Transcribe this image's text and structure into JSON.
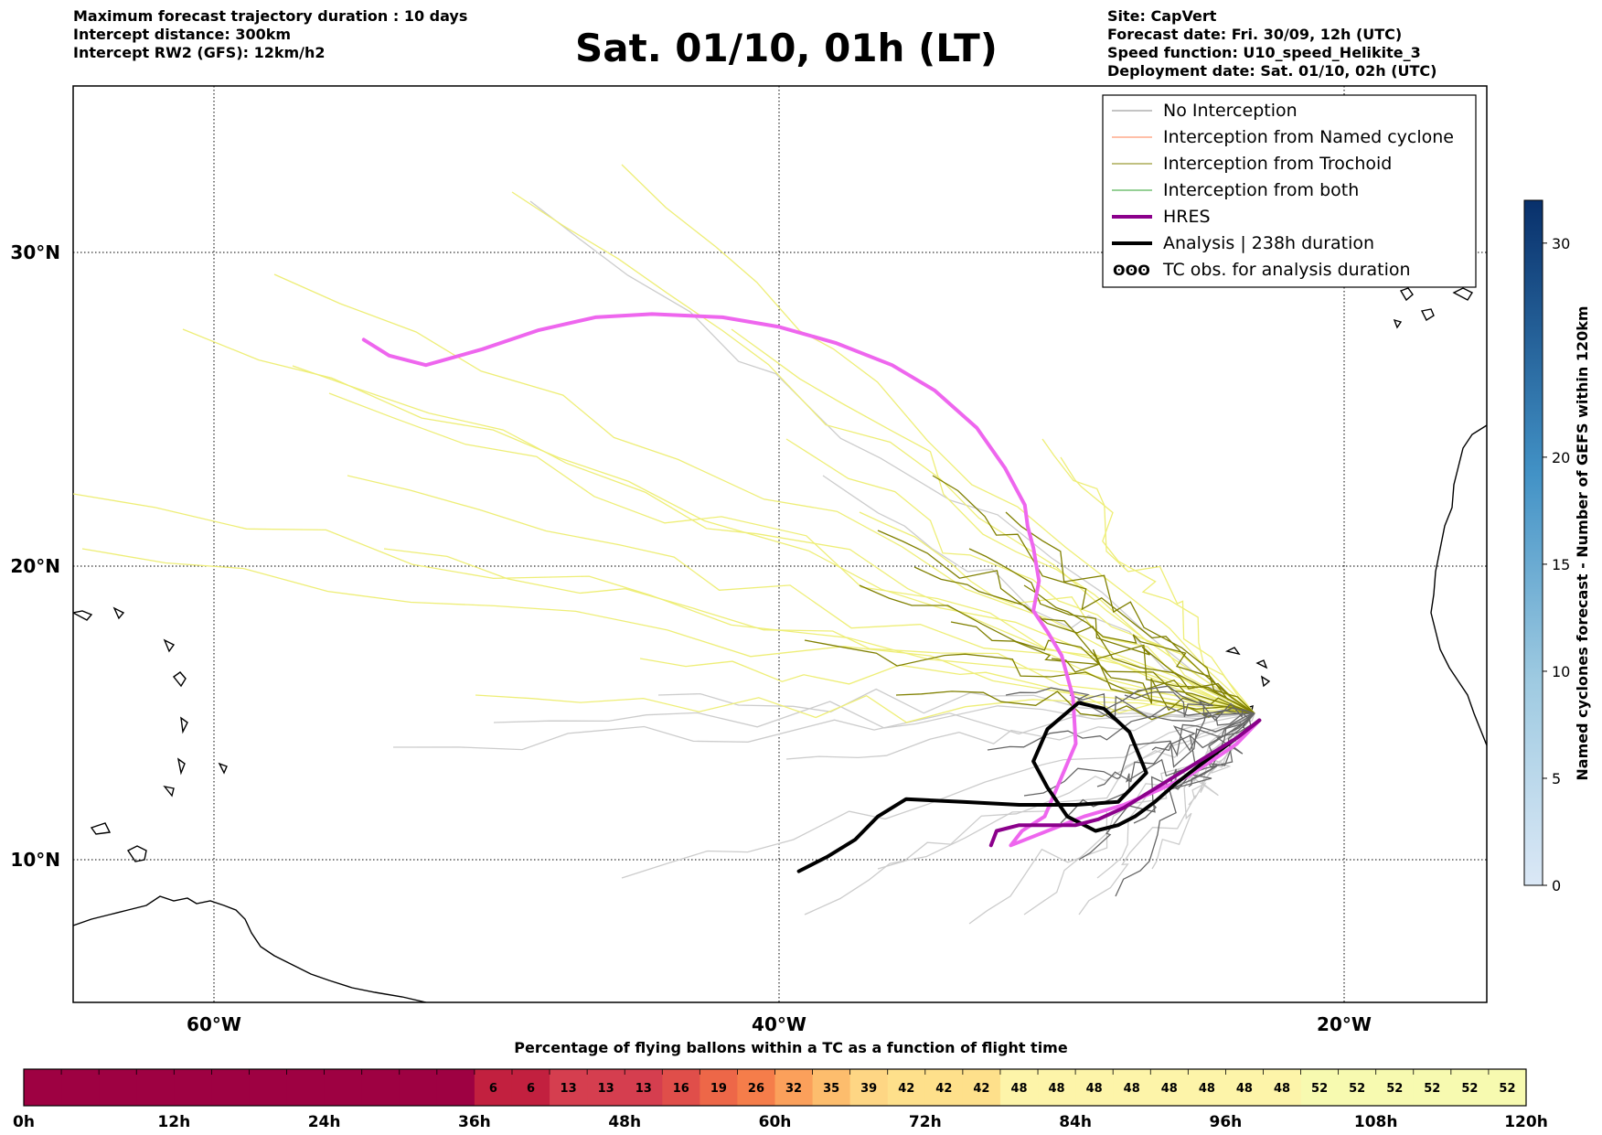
{
  "header": {
    "left_lines": [
      "Maximum forecast trajectory duration : 10 days",
      "Intercept distance: 300km",
      "Intercept RW2 (GFS):  12km/h2"
    ],
    "title": "Sat. 01/10, 01h (LT)",
    "right_lines": [
      "Site: CapVert",
      "Forecast date: Fri. 30/09, 12h (UTC)",
      "Speed function: U10_speed_Helikite_3",
      "Deployment date: Sat. 01/10, 02h (UTC)"
    ]
  },
  "colors": {
    "no_interception": "#aaaaaa",
    "named_cyclone": "#ff7f50",
    "trochoid": "#808000",
    "both": "#2ca02c",
    "hres": "#8b008b",
    "analysis": "#000000",
    "yellow_traj": "#eeee77",
    "magenta_hres": "#ee66ee"
  },
  "chart_data": [
    {
      "type": "line",
      "title": "",
      "x_ticks": [
        "60°W",
        "40°W",
        "20°W"
      ],
      "y_ticks": [
        "30°N",
        "20°N",
        "10°N"
      ],
      "xlim": [
        -65,
        -15
      ],
      "ylim": [
        5.5,
        35
      ],
      "grid": true,
      "legend_position": "top-right",
      "legend": [
        {
          "label": "No Interception",
          "color": "#888888",
          "width": 1
        },
        {
          "label": "Interception from Named cyclone",
          "color": "#ff7f50",
          "width": 1
        },
        {
          "label": "Interception from Trochoid",
          "color": "#808000",
          "width": 1
        },
        {
          "label": "Interception from both",
          "color": "#2ca02c",
          "width": 1
        },
        {
          "label": "HRES",
          "color": "#8b008b",
          "width": 4
        },
        {
          "label": "Analysis | 238h duration",
          "color": "#000000",
          "width": 4
        },
        {
          "label": "TC obs. for analysis duration",
          "color": "#000000",
          "width": 0,
          "symbol": "ʘʘʘ"
        }
      ],
      "series": [
        {
          "name": "HRES",
          "color": "#ee66ee",
          "width": 4,
          "lat": [
            14.8,
            14.0,
            13.6,
            12.9,
            12.4,
            11.9,
            11.5,
            11.0,
            10.5,
            11.0,
            11.5,
            14.0,
            15.6,
            17.0,
            17.8,
            18.5,
            19.5,
            20.6,
            21.3,
            22.0,
            23.2,
            24.5,
            25.7,
            26.5,
            27.2,
            27.7,
            28.0,
            28.1,
            28.0,
            27.6,
            27.0,
            26.5,
            26.8,
            27.3
          ],
          "lon": [
            -23.0,
            -23.8,
            -24.4,
            -25.5,
            -26.6,
            -27.8,
            -29.2,
            -30.5,
            -31.8,
            -31.4,
            -30.6,
            -29.5,
            -29.6,
            -30.0,
            -30.5,
            -31.0,
            -30.8,
            -31.0,
            -31.2,
            -31.3,
            -32.0,
            -33.0,
            -34.5,
            -36.0,
            -38.0,
            -40.0,
            -42.0,
            -44.5,
            -46.5,
            -48.5,
            -50.5,
            -52.5,
            -53.8,
            -54.7
          ]
        },
        {
          "name": "Analysis | 238h duration",
          "color": "#000000",
          "width": 4,
          "lat": [
            14.8,
            14.2,
            13.7,
            13.2,
            12.6,
            12.0,
            11.5,
            11.2,
            11.0,
            11.5,
            12.5,
            13.4,
            14.5,
            15.4,
            15.2,
            14.4,
            13.0,
            12.0,
            11.9,
            11.9,
            12.0,
            12.1,
            11.5,
            10.7,
            10.1,
            9.6
          ],
          "lon": [
            -23.0,
            -23.8,
            -24.5,
            -25.2,
            -26.0,
            -26.7,
            -27.4,
            -28.0,
            -28.8,
            -29.8,
            -30.5,
            -31.0,
            -30.5,
            -29.4,
            -28.5,
            -27.6,
            -27.0,
            -28.0,
            -29.5,
            -31.5,
            -33.5,
            -35.5,
            -36.5,
            -37.3,
            -38.3,
            -39.3
          ]
        },
        {
          "name": "HRES",
          "color": "#8b008b",
          "width": 4,
          "lat": [
            14.8,
            14.2,
            13.6,
            13.0,
            12.4,
            11.8,
            11.4,
            11.2,
            11.2,
            11.2,
            11.0,
            10.5
          ],
          "lon": [
            -23.0,
            -23.8,
            -24.8,
            -25.8,
            -26.8,
            -27.8,
            -28.7,
            -29.5,
            -30.5,
            -31.5,
            -32.3,
            -32.5
          ]
        }
      ]
    },
    {
      "type": "heatmap",
      "title": "Percentage of flying ballons within a TC as a function of flight time",
      "x_ticks": [
        "0h",
        "12h",
        "24h",
        "36h",
        "48h",
        "60h",
        "72h",
        "84h",
        "96h",
        "108h",
        "120h"
      ],
      "values": [
        0,
        0,
        0,
        0,
        0,
        0,
        0,
        0,
        0,
        0,
        0,
        0,
        6,
        6,
        13,
        13,
        13,
        16,
        19,
        26,
        32,
        35,
        39,
        42,
        42,
        42,
        48,
        48,
        48,
        48,
        48,
        48,
        48,
        48,
        52,
        52,
        52,
        52,
        52,
        52
      ],
      "labels": [
        "",
        "",
        "",
        "",
        "",
        "",
        "",
        "",
        "",
        "",
        "",
        "",
        "6",
        "6",
        "13",
        "13",
        "13",
        "16",
        "19",
        "26",
        "32",
        "35",
        "39",
        "42",
        "42",
        "42",
        "48",
        "48",
        "48",
        "48",
        "48",
        "48",
        "48",
        "48",
        "52",
        "52",
        "52",
        "52",
        "52",
        "52"
      ]
    },
    {
      "type": "heatmap",
      "title": "Named cyclones forecast - Number of GEFS within 120km",
      "ticks": [
        "0",
        "5",
        "10",
        "15",
        "20",
        "30"
      ],
      "tick_values": [
        0,
        5,
        10,
        15,
        20,
        30
      ],
      "range": [
        0,
        32
      ]
    }
  ]
}
